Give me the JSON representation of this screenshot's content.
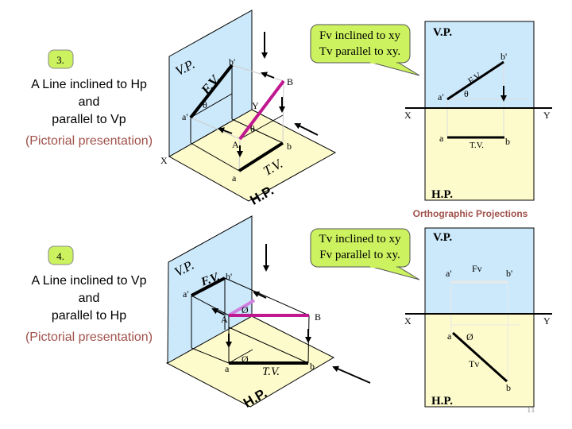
{
  "colors": {
    "vp_plane": "#cce9fb",
    "hp_plane": "#fdfbcc",
    "callout": "#ccf260",
    "line_true": "#c01890",
    "line_light": "#d080e0",
    "subtitle": "#a0504a"
  },
  "slide3": {
    "number": "3.",
    "title": [
      "A Line inclined to Hp",
      "and",
      "parallel to Vp"
    ],
    "subtitle": "(Pictorial presentation)",
    "callout": [
      "Fv inclined to xy",
      "Tv parallel to xy."
    ],
    "pictorial": {
      "vp": "V.P.",
      "hp": "H.P.",
      "fv": "F.V.",
      "tv": "T.V.",
      "a_dash": "a'",
      "b_dash": "b'",
      "A": "A",
      "B": "B",
      "a": "a",
      "b": "b",
      "x": "X",
      "y": "Y",
      "theta1": "θ",
      "theta2": "θ"
    },
    "ortho": {
      "vp": "V.P.",
      "hp": "H.P.",
      "fv": "F.V.",
      "tv": "T.V.",
      "a_dash": "a'",
      "b_dash": "b'",
      "a": "a",
      "b": "b",
      "x": "X",
      "y": "Y",
      "theta": "θ"
    },
    "caption": "Orthographic Projections"
  },
  "slide4": {
    "number": "4.",
    "title": [
      "A Line inclined to Vp",
      "and",
      "parallel to Hp"
    ],
    "subtitle": "(Pictorial presentation)",
    "callout": [
      "Tv inclined to xy",
      "Fv parallel to xy."
    ],
    "pictorial": {
      "vp": "V.P.",
      "hp": "H.P.",
      "fv": "F.V.",
      "tv": "T.V.",
      "a_dash": "a'",
      "b_dash": "b'",
      "A": "A",
      "B": "B",
      "a": "a",
      "b": "b",
      "phi1": "Ø",
      "phi2": "Ø"
    },
    "ortho": {
      "vp": "V.P.",
      "hp": "H.P.",
      "fv": "Fv",
      "tv": "Tv",
      "a_dash": "a'",
      "b_dash": "b'",
      "a": "a",
      "b": "b",
      "x": "X",
      "y": "Y",
      "phi": "Ø"
    }
  },
  "page_number": "11"
}
